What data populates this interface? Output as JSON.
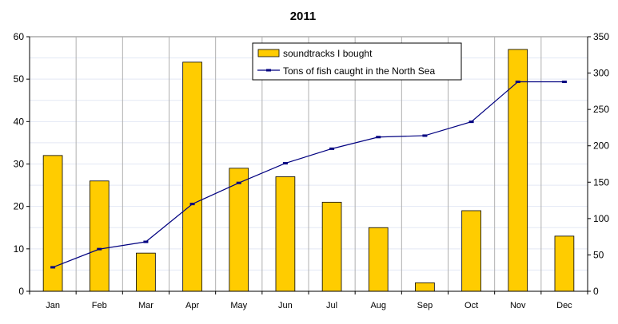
{
  "chart_data": {
    "type": "bar",
    "title": "2011",
    "categories": [
      "Jan",
      "Feb",
      "Mar",
      "Apr",
      "May",
      "Jun",
      "Jul",
      "Aug",
      "Sep",
      "Oct",
      "Nov",
      "Dec"
    ],
    "series": [
      {
        "name": "soundtracks I bought",
        "type": "bar",
        "axis": "left",
        "color": "#FFCC00",
        "values": [
          32,
          26,
          9,
          54,
          29,
          27,
          21,
          15,
          2,
          19,
          57,
          13
        ]
      },
      {
        "name": "Tons of fish caught in the North Sea",
        "type": "line",
        "axis": "right",
        "color": "#000080",
        "values": [
          33,
          58,
          68,
          120,
          149,
          176,
          196,
          212,
          214,
          233,
          288,
          288
        ]
      }
    ],
    "y_left": {
      "min": 0,
      "max": 60,
      "ticks": [
        "0",
        "10",
        "20",
        "30",
        "40",
        "50",
        "60"
      ]
    },
    "y_right": {
      "min": 0,
      "max": 350,
      "ticks": [
        "0",
        "50",
        "100",
        "150",
        "200",
        "250",
        "300",
        "350"
      ]
    },
    "grid": true,
    "legend": "top-center"
  }
}
